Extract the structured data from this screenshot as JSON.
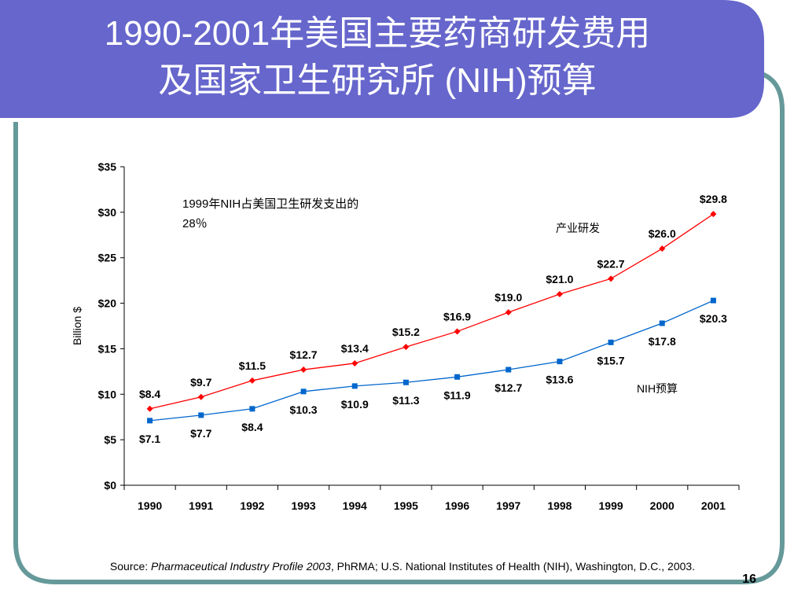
{
  "slide": {
    "title_line1": "1990-2001年美国主要药商研发费用",
    "title_line2": "及国家卫生研究所 (NIH)预算",
    "source_prefix": "Source: ",
    "source_italic": "Pharmaceutical Industry Profile 2003",
    "source_rest": ", PhRMA; U.S. National Institutes of Health (NIH),  Washington, D.C., 2003.",
    "page_number": "16",
    "colors": {
      "header": "#6666cc",
      "border": "#669999"
    }
  },
  "chart_data": {
    "type": "line",
    "x": [
      "1990",
      "1991",
      "1992",
      "1993",
      "1994",
      "1995",
      "1996",
      "1997",
      "1998",
      "1999",
      "2000",
      "2001"
    ],
    "series": [
      {
        "name": "产业研发",
        "color": "#ff0000",
        "marker": "diamond",
        "values": [
          8.4,
          9.7,
          11.5,
          12.7,
          13.4,
          15.2,
          16.9,
          19.0,
          21.0,
          22.7,
          26.0,
          29.8
        ],
        "labels": [
          "$8.4",
          "$9.7",
          "$11.5",
          "$12.7",
          "$13.4",
          "$15.2",
          "$16.9",
          "$19.0",
          "$21.0",
          "$22.7",
          "$26.0",
          "$29.8"
        ]
      },
      {
        "name": "NIH预算",
        "color": "#0066cc",
        "marker": "square",
        "values": [
          7.1,
          7.7,
          8.4,
          10.3,
          10.9,
          11.3,
          11.9,
          12.7,
          13.6,
          15.7,
          17.8,
          20.3
        ],
        "labels": [
          "$7.1",
          "$7.7",
          "$8.4",
          "$10.3",
          "$10.9",
          "$11.3",
          "$11.9",
          "$12.7",
          "$13.6",
          "$15.7",
          "$17.8",
          "$20.3"
        ]
      }
    ],
    "ylabel": "Billion $",
    "ylim": [
      0,
      35
    ],
    "yticks": [
      0,
      5,
      10,
      15,
      20,
      25,
      30,
      35
    ],
    "ytick_labels": [
      "$0",
      "$5",
      "$10",
      "$15",
      "$20",
      "$25",
      "$30",
      "$35"
    ],
    "grid": false,
    "annotations": [
      "1999年NIH占美国卫生研发支出的",
      "28％"
    ]
  }
}
